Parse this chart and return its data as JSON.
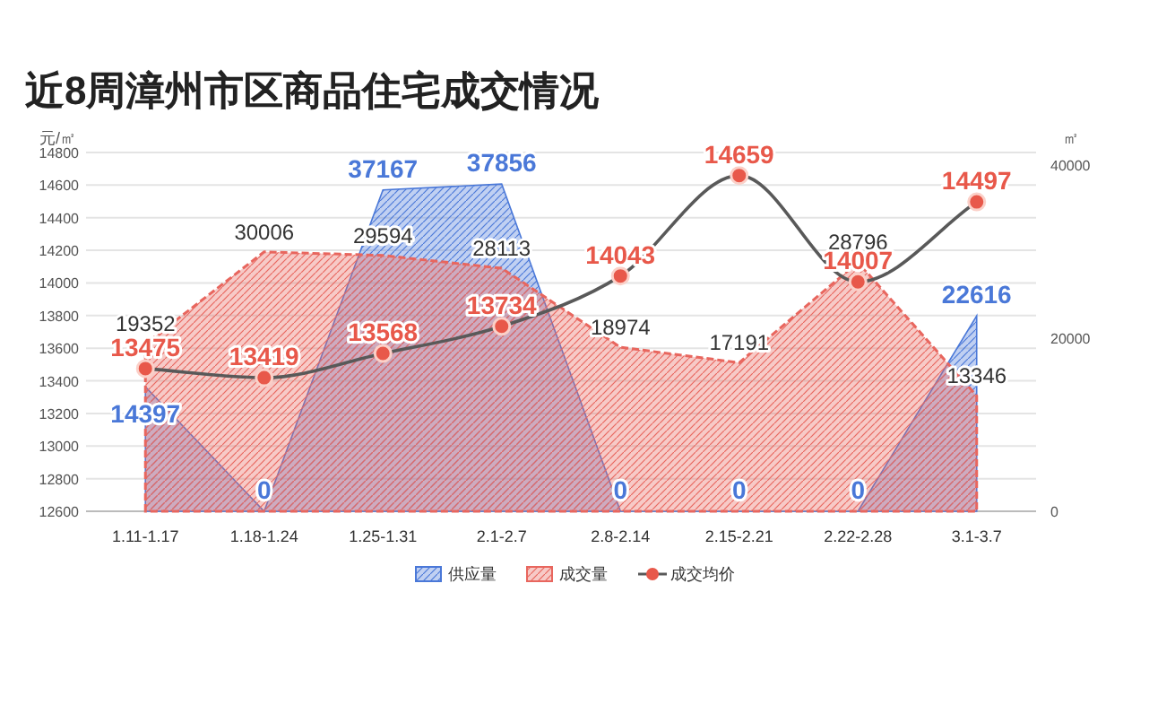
{
  "chart_data": {
    "type": "line",
    "title": "近8周漳州市区商品住宅成交情况",
    "ylabel": "元/㎡",
    "y2label": "㎡",
    "categories": [
      "1.11-1.17",
      "1.18-1.24",
      "1.25-1.31",
      "2.1-2.7",
      "2.8-2.14",
      "2.15-2.21",
      "2.22-2.28",
      "3.1-3.7"
    ],
    "series": [
      {
        "name": "供应量",
        "type": "area",
        "axis": "y2",
        "color": "#4a78d8",
        "values": [
          14397,
          0,
          37167,
          37856,
          0,
          0,
          0,
          22616
        ]
      },
      {
        "name": "成交量",
        "type": "area",
        "axis": "y2",
        "color": "#e8665e",
        "values": [
          19352,
          30006,
          29594,
          28113,
          18974,
          17191,
          28796,
          13346
        ]
      },
      {
        "name": "成交均价",
        "axis": "y",
        "color": "#e8584a",
        "marker": "circle",
        "values": [
          13475,
          13419,
          13568,
          13734,
          14043,
          14659,
          14007,
          14497
        ]
      }
    ],
    "ylim": [
      12600,
      14800
    ],
    "yticks": [
      12600,
      12800,
      13000,
      13200,
      13400,
      13600,
      13800,
      14000,
      14200,
      14400,
      14600,
      14800
    ],
    "y2lim": [
      0,
      41500
    ],
    "y2ticks": [
      0,
      20000,
      40000
    ],
    "grid": "y",
    "legend": "bottom",
    "data_labels": true
  }
}
